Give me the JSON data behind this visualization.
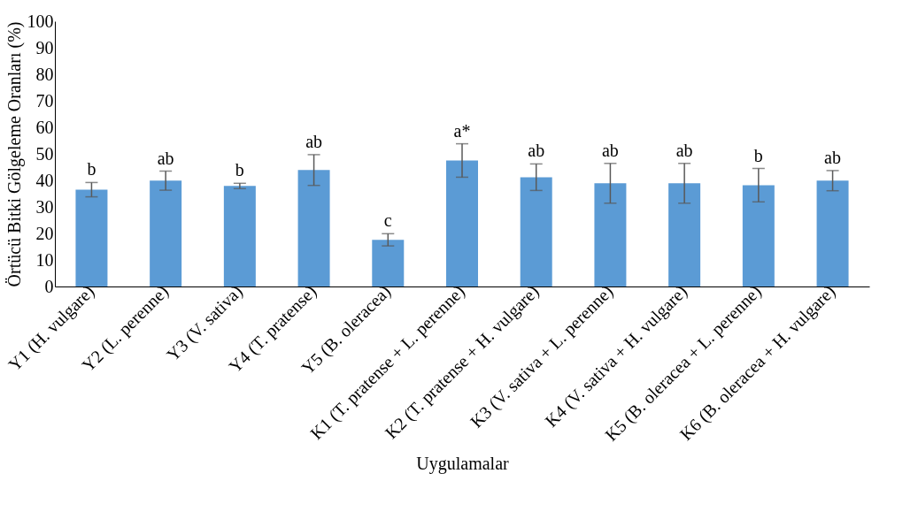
{
  "chart_data": {
    "type": "bar",
    "xlabel": "Uygulamalar",
    "ylabel": "Örtücü Bitki Gölgeleme Oranları (%)",
    "categories": [
      "Y1 (H. vulgare)",
      "Y2 (L. perenne)",
      "Y3 (V. sativa)",
      "Y4 (T. pratense)",
      "Y5 (B. oleracea)",
      "K1 (T. pratense + L. perenne)",
      "K2 (T. pratense + H. vulgare)",
      "K3 (V. sativa + L. perenne)",
      "K4 (V. sativa + H. vulgare)",
      "K5 (B. oleracea + L. perenne)",
      "K6 (B. oleracea + H. vulgare)"
    ],
    "values": [
      36.5,
      39.9,
      37.9,
      43.9,
      17.6,
      47.5,
      41.2,
      38.9,
      38.9,
      38.2,
      39.9
    ],
    "errors": [
      2.7,
      3.6,
      1,
      5.8,
      2.3,
      6.3,
      5,
      7.5,
      7.5,
      6.3,
      3.8
    ],
    "color": "#5b9bd5",
    "ylim": [
      0,
      100
    ],
    "yticks": [
      0,
      10,
      20,
      30,
      40,
      50,
      60,
      70,
      80,
      90,
      100
    ],
    "grid": false,
    "annotations": [
      {
        "text": "b",
        "x": "Y1 (H. vulgare)",
        "y": 39.2
      },
      {
        "text": "ab",
        "x": "Y2 (L. perenne)",
        "y": 43.5
      },
      {
        "text": "b",
        "x": "Y3 (V. sativa)",
        "y": 38.9
      },
      {
        "text": "ab",
        "x": "Y4 (T. pratense)",
        "y": 49.7
      },
      {
        "text": "c",
        "x": "Y5 (B. oleracea)",
        "y": 19.9
      },
      {
        "text": "a*",
        "x": "K1 (T. pratense + L. perenne)",
        "y": 53.8
      },
      {
        "text": "ab",
        "x": "K2 (T. pratense + H. vulgare)",
        "y": 46.2
      },
      {
        "text": "ab",
        "x": "K3 (V. sativa + L. perenne)",
        "y": 46.4
      },
      {
        "text": "ab",
        "x": "K4 (V. sativa + H. vulgare)",
        "y": 46.4
      },
      {
        "text": "b",
        "x": "K5 (B. oleracea + L. perenne)",
        "y": 44.5
      },
      {
        "text": "ab",
        "x": "K6 (B. oleracea + H. vulgare)",
        "y": 43.7
      }
    ]
  }
}
